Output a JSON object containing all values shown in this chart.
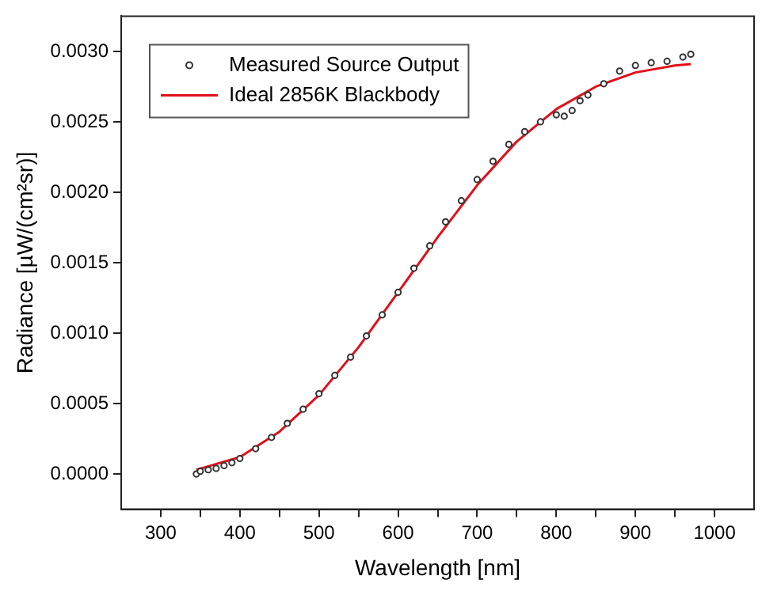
{
  "chart_data": {
    "type": "line",
    "xlabel": "Wavelength [nm]",
    "ylabel": "Radiance [µW/(cm²sr)]",
    "xlim": [
      250,
      1050
    ],
    "xticks": [
      300,
      {
        "value": 350,
        "label": null
      },
      400,
      {
        "value": 450,
        "label": null
      },
      500,
      {
        "value": 550,
        "label": null
      },
      600,
      {
        "value": 650,
        "label": null
      },
      700,
      {
        "value": 750,
        "label": null
      },
      800,
      {
        "value": 850,
        "label": null
      },
      900,
      {
        "value": 950,
        "label": null
      },
      1000
    ],
    "ylim": [
      -0.00025,
      0.00325
    ],
    "yticks": [
      {
        "value": 0,
        "label": "0.0000"
      },
      {
        "value": 0.0005,
        "label": "0.0005"
      },
      {
        "value": 0.001,
        "label": "0.0010"
      },
      {
        "value": 0.0015,
        "label": "0.0015"
      },
      {
        "value": 0.002,
        "label": "0.0020"
      },
      {
        "value": 0.0025,
        "label": "0.0025"
      },
      {
        "value": 0.003,
        "label": "0.0030"
      }
    ],
    "grid": false,
    "legend": "top left",
    "series": [
      {
        "name": "Measured Source Output",
        "type": "scatter",
        "marker": "circle",
        "color": "#333333",
        "x": [
          345,
          350,
          360,
          370,
          380,
          390,
          400,
          420,
          440,
          460,
          480,
          500,
          520,
          540,
          560,
          580,
          600,
          620,
          640,
          660,
          680,
          700,
          720,
          740,
          760,
          780,
          800,
          810,
          820,
          830,
          840,
          860,
          880,
          900,
          920,
          940,
          960,
          970
        ],
        "values": [
          0.0,
          2e-05,
          3e-05,
          4e-05,
          6e-05,
          8e-05,
          0.00011,
          0.00018,
          0.00026,
          0.00036,
          0.00046,
          0.00057,
          0.0007,
          0.00083,
          0.00098,
          0.00113,
          0.00129,
          0.00146,
          0.00162,
          0.00179,
          0.00194,
          0.00209,
          0.00222,
          0.00234,
          0.00243,
          0.0025,
          0.00255,
          0.00254,
          0.00258,
          0.00265,
          0.00269,
          0.00277,
          0.00286,
          0.0029,
          0.00292,
          0.00293,
          0.00296,
          0.00298
        ]
      },
      {
        "name": "Ideal 2856K Blackbody",
        "line_style": "solid",
        "color": "#e0101a",
        "x": [
          345,
          400,
          450,
          500,
          550,
          600,
          650,
          700,
          750,
          800,
          850,
          900,
          950,
          970
        ],
        "values": [
          3e-05,
          0.00012,
          0.0003,
          0.00056,
          0.0009,
          0.00129,
          0.00168,
          0.00205,
          0.00236,
          0.00259,
          0.00275,
          0.00285,
          0.0029,
          0.00291
        ]
      }
    ]
  }
}
